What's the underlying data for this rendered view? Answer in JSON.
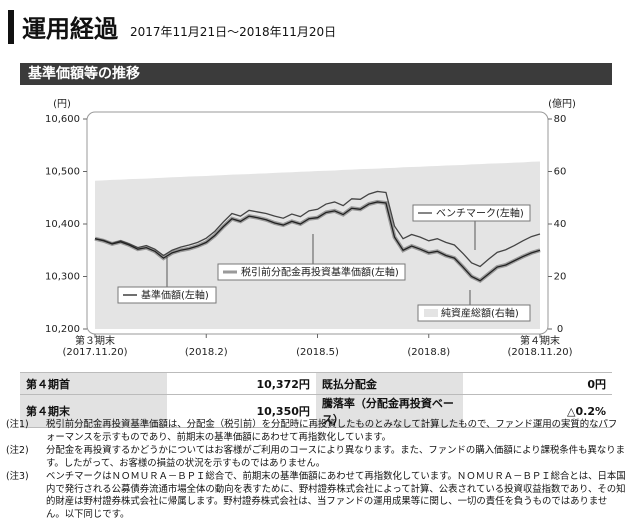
{
  "header": {
    "title": "運用経過",
    "period": "2017年11月21日～2018年11月20日",
    "section": "基準価額等の推移"
  },
  "chart_data": {
    "type": "line",
    "categories": [
      "(2017.11.20)",
      null,
      null,
      null,
      null,
      null,
      null,
      null,
      null,
      null,
      null,
      null,
      null,
      "(2018.2)",
      null,
      null,
      null,
      null,
      null,
      null,
      null,
      null,
      null,
      null,
      null,
      null,
      "(2018.5)",
      null,
      null,
      null,
      null,
      null,
      null,
      null,
      null,
      null,
      null,
      null,
      null,
      "(2018.8)",
      null,
      null,
      null,
      null,
      null,
      null,
      null,
      null,
      null,
      null,
      null,
      null,
      "(2018.11.20)"
    ],
    "period_start_label": "第３期末",
    "period_end_label": "第４期末",
    "ylabel": "(円)",
    "y2label": "(億円)",
    "ylim": [
      10200,
      10600
    ],
    "yticks": [
      {
        "value": 10200,
        "label": "10,200"
      },
      {
        "value": 10300,
        "label": "10,300"
      },
      {
        "value": 10400,
        "label": "10,400"
      },
      {
        "value": 10500,
        "label": "10,500"
      },
      {
        "value": 10600,
        "label": "10,600"
      }
    ],
    "y2lim": [
      0,
      80
    ],
    "y2ticks": [
      0,
      20,
      40,
      60,
      80
    ],
    "series": [
      {
        "name": "基準価額(左軸)",
        "color": "#222222",
        "values": [
          10372,
          10368,
          10362,
          10366,
          10360,
          10352,
          10355,
          10348,
          10335,
          10345,
          10350,
          10353,
          10358,
          10365,
          10378,
          10395,
          10410,
          10405,
          10415,
          10412,
          10408,
          10402,
          10398,
          10405,
          10400,
          10410,
          10412,
          10422,
          10425,
          10418,
          10430,
          10428,
          10438,
          10442,
          10440,
          10375,
          10350,
          10358,
          10352,
          10345,
          10348,
          10340,
          10335,
          10318,
          10300,
          10292,
          10305,
          10318,
          10322,
          10330,
          10338,
          10345,
          10350
        ]
      },
      {
        "name": "税引前分配金再投資基準価額(左軸)",
        "color": "#9a9a9a",
        "values": [
          10372,
          10368,
          10362,
          10366,
          10360,
          10352,
          10355,
          10348,
          10335,
          10345,
          10350,
          10353,
          10358,
          10365,
          10378,
          10395,
          10410,
          10405,
          10415,
          10412,
          10408,
          10402,
          10398,
          10405,
          10400,
          10410,
          10412,
          10422,
          10425,
          10418,
          10430,
          10428,
          10438,
          10442,
          10440,
          10375,
          10350,
          10358,
          10352,
          10345,
          10348,
          10340,
          10335,
          10318,
          10300,
          10292,
          10305,
          10318,
          10322,
          10330,
          10338,
          10345,
          10350
        ]
      },
      {
        "name": "ベンチマーク(左軸)",
        "color": "#444444",
        "values": [
          10372,
          10369,
          10363,
          10368,
          10362,
          10355,
          10359,
          10352,
          10340,
          10350,
          10356,
          10360,
          10365,
          10373,
          10386,
          10404,
          10420,
          10415,
          10426,
          10423,
          10420,
          10415,
          10411,
          10419,
          10414,
          10425,
          10428,
          10438,
          10442,
          10435,
          10448,
          10447,
          10457,
          10462,
          10460,
          10396,
          10372,
          10380,
          10375,
          10368,
          10372,
          10365,
          10360,
          10344,
          10326,
          10319,
          10333,
          10346,
          10351,
          10359,
          10368,
          10376,
          10381
        ]
      },
      {
        "name": "純資産総額(右軸)",
        "color": "#e4e4e4",
        "axis": "y2",
        "values": [
          56.5,
          56.6,
          56.8,
          56.9,
          57.1,
          57.2,
          57.3,
          57.5,
          57.6,
          57.8,
          57.9,
          58.1,
          58.2,
          58.3,
          58.5,
          58.6,
          58.8,
          58.9,
          59.0,
          59.2,
          59.3,
          59.5,
          59.6,
          59.7,
          59.9,
          60.0,
          60.2,
          60.3,
          60.4,
          60.6,
          60.7,
          60.9,
          61.0,
          61.1,
          61.3,
          61.4,
          61.6,
          61.7,
          61.8,
          62.0,
          62.1,
          62.3,
          62.4,
          62.5,
          62.7,
          62.8,
          63.0,
          63.1,
          63.2,
          63.4,
          63.5,
          63.7,
          63.8
        ]
      }
    ]
  },
  "table": {
    "rows": [
      [
        "第４期首",
        "10,372円",
        "既払分配金",
        "0円"
      ],
      [
        "第４期末",
        "10,350円",
        "騰落率（分配金再投資ベース）",
        "△0.2%"
      ]
    ]
  },
  "notes": [
    {
      "label": "(注1)",
      "text": "税引前分配金再投資基準価額は、分配金（税引前）を分配時に再投資したものとみなして計算したもので、ファンド運用の実質的なパフォーマンスを示すものであり、前期末の基準価額にあわせて再指数化しています。"
    },
    {
      "label": "(注2)",
      "text": "分配金を再投資するかどうかについてはお客様がご利用のコースにより異なります。また、ファンドの購入価額により課税条件も異なります。したがって、お客様の損益の状況を示すものではありません。"
    },
    {
      "label": "(注3)",
      "text": "ベンチマークはＮＯＭＵＲＡ－ＢＰＩ総合で、前期末の基準価額にあわせて再指数化しています。ＮＯＭＵＲＡ－ＢＰＩ総合とは、日本国内で発行される公募債券流通市場全体の動向を表すために、野村證券株式会社によって計算、公表されている投資収益指数であり、その知的財産は野村證券株式会社に帰属します。野村證券株式会社は、当ファンドの運用成果等に関し、一切の責任を負うものではありません。以下同じです。"
    }
  ]
}
